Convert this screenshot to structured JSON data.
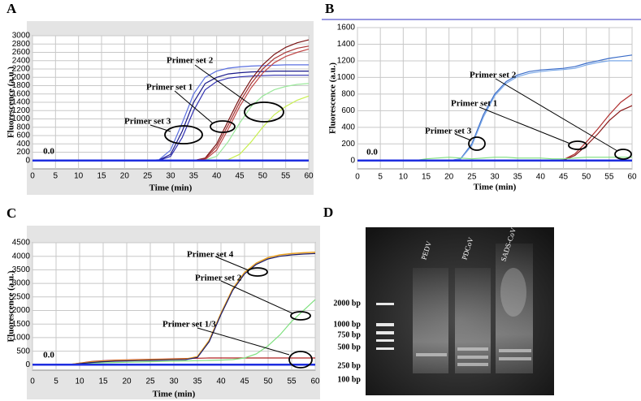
{
  "chart_data": [
    {
      "type": "line",
      "panel": "A",
      "y_label": "Fluorescence (a.u.)",
      "x_label": "Time (min)",
      "x": [
        0,
        2.5,
        5,
        7.5,
        10,
        12.5,
        15,
        17.5,
        20,
        22.5,
        25,
        27.5,
        30,
        32.5,
        35,
        37.5,
        40,
        42.5,
        45,
        47.5,
        50,
        52.5,
        55,
        57.5,
        60
      ],
      "xlim": [
        0,
        60
      ],
      "xticks": [
        0,
        5,
        10,
        15,
        20,
        25,
        30,
        35,
        40,
        45,
        50,
        55,
        60
      ],
      "ylim": [
        -200,
        3000
      ],
      "yticks": [
        0,
        200,
        400,
        600,
        800,
        1000,
        1200,
        1400,
        1600,
        1800,
        2000,
        2200,
        2400,
        2600,
        2800,
        3000
      ],
      "grid": true,
      "annotations": [
        "Primer set 2",
        "Primer set 1",
        "Primer set 3",
        "0.0"
      ],
      "series": [
        {
          "color": "#5a6fe0",
          "width": 1.2,
          "values": [
            0,
            0,
            0,
            0,
            0,
            0,
            0,
            0,
            0,
            0,
            0,
            20,
            250,
            900,
            1600,
            2000,
            2150,
            2220,
            2250,
            2270,
            2280,
            2290,
            2300,
            2300,
            2300
          ]
        },
        {
          "color": "#1a1a8a",
          "width": 1.2,
          "values": [
            0,
            0,
            0,
            0,
            0,
            0,
            0,
            0,
            0,
            0,
            0,
            10,
            150,
            700,
            1400,
            1850,
            2000,
            2080,
            2110,
            2130,
            2140,
            2150,
            2150,
            2150,
            2150
          ]
        },
        {
          "color": "#3030b0",
          "width": 1.2,
          "values": [
            0,
            0,
            0,
            0,
            0,
            0,
            0,
            0,
            0,
            0,
            0,
            5,
            100,
            550,
            1200,
            1700,
            1900,
            1980,
            2010,
            2030,
            2040,
            2050,
            2050,
            2050,
            2050
          ]
        },
        {
          "color": "#7a1414",
          "width": 1.2,
          "values": [
            0,
            0,
            0,
            0,
            0,
            0,
            0,
            0,
            0,
            0,
            0,
            0,
            0,
            0,
            0,
            60,
            400,
            950,
            1500,
            1950,
            2300,
            2550,
            2720,
            2830,
            2900
          ]
        },
        {
          "color": "#a83232",
          "width": 1.2,
          "values": [
            0,
            0,
            0,
            0,
            0,
            0,
            0,
            0,
            0,
            0,
            0,
            0,
            0,
            0,
            0,
            40,
            330,
            850,
            1400,
            1850,
            2200,
            2450,
            2600,
            2700,
            2750
          ]
        },
        {
          "color": "#c04848",
          "width": 1.2,
          "values": [
            0,
            0,
            0,
            0,
            0,
            0,
            0,
            0,
            0,
            0,
            0,
            0,
            0,
            0,
            0,
            20,
            250,
            750,
            1300,
            1750,
            2100,
            2350,
            2500,
            2600,
            2680
          ]
        },
        {
          "color": "#9be89b",
          "width": 1.2,
          "values": [
            0,
            0,
            0,
            0,
            0,
            0,
            0,
            0,
            0,
            0,
            0,
            0,
            0,
            0,
            0,
            10,
            100,
            450,
            900,
            1300,
            1550,
            1700,
            1780,
            1830,
            1850
          ]
        },
        {
          "color": "#c8ef50",
          "width": 1.2,
          "values": [
            0,
            0,
            0,
            0,
            0,
            0,
            0,
            0,
            0,
            0,
            0,
            0,
            0,
            0,
            0,
            0,
            0,
            20,
            150,
            450,
            800,
            1100,
            1300,
            1450,
            1550
          ]
        },
        {
          "color": "#1e2ee0",
          "width": 2.5,
          "values": [
            0,
            0,
            0,
            0,
            0,
            0,
            0,
            0,
            0,
            0,
            0,
            0,
            0,
            0,
            0,
            0,
            0,
            0,
            0,
            0,
            0,
            0,
            0,
            0,
            0
          ]
        }
      ]
    },
    {
      "type": "line",
      "panel": "B",
      "y_label": "Fluorescence (a.u.)",
      "x_label": "Time (min)",
      "x": [
        0,
        2.5,
        5,
        7.5,
        10,
        12.5,
        15,
        17.5,
        20,
        22.5,
        25,
        27.5,
        30,
        32.5,
        35,
        37.5,
        40,
        42.5,
        45,
        47.5,
        50,
        52.5,
        55,
        57.5,
        60
      ],
      "xlim": [
        0,
        60
      ],
      "xticks": [
        0,
        5,
        10,
        15,
        20,
        25,
        30,
        35,
        40,
        45,
        50,
        55,
        60
      ],
      "ylim": [
        -100,
        1600
      ],
      "yticks": [
        0,
        200,
        400,
        600,
        800,
        1000,
        1200,
        1400,
        1600
      ],
      "grid": true,
      "annotations": [
        "Primer set 2",
        "Primer set 1",
        "Primer set 3",
        "0.0"
      ],
      "series": [
        {
          "color": "#3a6cc8",
          "width": 1.2,
          "values": [
            0,
            0,
            0,
            0,
            0,
            0,
            0,
            0,
            0,
            20,
            200,
            550,
            800,
            950,
            1030,
            1070,
            1090,
            1100,
            1110,
            1130,
            1170,
            1200,
            1230,
            1250,
            1270
          ]
        },
        {
          "color": "#7aa8e8",
          "width": 1.2,
          "values": [
            0,
            0,
            0,
            0,
            0,
            0,
            0,
            0,
            0,
            15,
            180,
            520,
            780,
            930,
            1010,
            1050,
            1070,
            1085,
            1095,
            1110,
            1150,
            1180,
            1200,
            1200,
            1200
          ]
        },
        {
          "color": "#b03030",
          "width": 1.2,
          "values": [
            0,
            0,
            0,
            0,
            0,
            0,
            0,
            0,
            0,
            0,
            0,
            0,
            0,
            0,
            0,
            0,
            0,
            0,
            10,
            80,
            220,
            380,
            550,
            700,
            800
          ]
        },
        {
          "color": "#8a1a1a",
          "width": 1.2,
          "values": [
            0,
            0,
            0,
            0,
            0,
            0,
            0,
            0,
            0,
            0,
            0,
            0,
            0,
            0,
            0,
            0,
            0,
            0,
            5,
            60,
            180,
            320,
            480,
            600,
            660
          ]
        },
        {
          "color": "#7ee07e",
          "width": 1.2,
          "values": [
            0,
            0,
            0,
            0,
            0,
            0,
            20,
            30,
            40,
            30,
            20,
            30,
            40,
            40,
            30,
            30,
            30,
            20,
            20,
            30,
            40,
            40,
            40,
            40,
            40
          ]
        },
        {
          "color": "#1e2ee0",
          "width": 2.5,
          "values": [
            0,
            0,
            0,
            0,
            0,
            0,
            0,
            0,
            0,
            0,
            0,
            0,
            0,
            0,
            0,
            0,
            0,
            0,
            0,
            0,
            0,
            0,
            0,
            0,
            0
          ]
        }
      ]
    },
    {
      "type": "line",
      "panel": "C",
      "y_label": "Fluorescence (a.u.)",
      "x_label": "Time (min)",
      "x": [
        0,
        2.5,
        5,
        7.5,
        10,
        12.5,
        15,
        17.5,
        20,
        22.5,
        25,
        27.5,
        30,
        32.5,
        35,
        37.5,
        40,
        42.5,
        45,
        47.5,
        50,
        52.5,
        55,
        57.5,
        60
      ],
      "xlim": [
        0,
        60
      ],
      "xticks": [
        0,
        5,
        10,
        15,
        20,
        25,
        30,
        35,
        40,
        45,
        50,
        55,
        60
      ],
      "ylim": [
        -200,
        4500
      ],
      "yticks": [
        0,
        500,
        1000,
        1500,
        2000,
        2500,
        3000,
        3500,
        4000,
        4500
      ],
      "grid": true,
      "annotations": [
        "Primer set 4",
        "Primer set 2",
        "Primer set 1/3",
        "0.0"
      ],
      "series": [
        {
          "color": "#b02020",
          "width": 1.2,
          "values": [
            0,
            0,
            0,
            0,
            60,
            120,
            150,
            170,
            180,
            190,
            200,
            210,
            220,
            230,
            240,
            250,
            250,
            250,
            250,
            250,
            250,
            250,
            250,
            250,
            250
          ]
        },
        {
          "color": "#7ee07e",
          "width": 1.2,
          "values": [
            0,
            0,
            0,
            0,
            30,
            60,
            70,
            80,
            90,
            100,
            110,
            120,
            130,
            140,
            150,
            160,
            170,
            190,
            250,
            400,
            700,
            1100,
            1600,
            2000,
            2400
          ]
        },
        {
          "color": "#e8a020",
          "width": 1.5,
          "values": [
            0,
            0,
            0,
            0,
            50,
            100,
            130,
            150,
            160,
            170,
            180,
            190,
            200,
            210,
            300,
            900,
            1900,
            2800,
            3400,
            3750,
            3950,
            4050,
            4100,
            4130,
            4150
          ]
        },
        {
          "color": "#1a1a6a",
          "width": 1.2,
          "values": [
            0,
            0,
            0,
            0,
            40,
            80,
            110,
            130,
            140,
            150,
            160,
            170,
            180,
            190,
            270,
            850,
            1850,
            2750,
            3350,
            3700,
            3900,
            4000,
            4050,
            4080,
            4100
          ]
        },
        {
          "color": "#1e2ee0",
          "width": 2.5,
          "values": [
            0,
            0,
            0,
            0,
            0,
            0,
            0,
            0,
            0,
            0,
            0,
            0,
            0,
            0,
            0,
            0,
            0,
            0,
            0,
            0,
            0,
            0,
            0,
            0,
            0
          ]
        }
      ]
    }
  ],
  "gel": {
    "panel": "D",
    "lanes": [
      "PEDV",
      "PDCoV",
      "SADS-CoV"
    ],
    "ladder": [
      "2000 bp",
      "1000 bp",
      "750 bp",
      "500 bp",
      "250 bp",
      "100 bp"
    ]
  }
}
